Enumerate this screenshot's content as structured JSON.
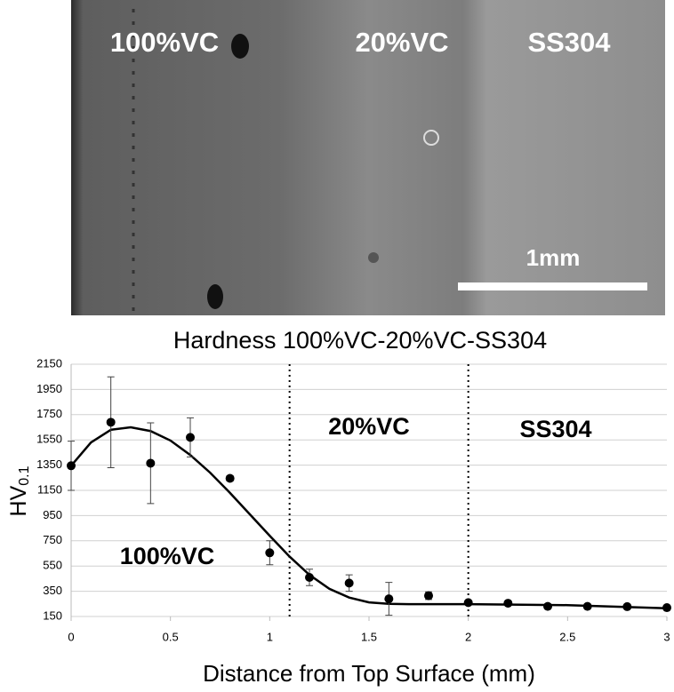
{
  "micrograph": {
    "labels": [
      "100%VC",
      "20%VC",
      "SS304"
    ],
    "scale_bar": "1mm"
  },
  "chart_data": {
    "type": "scatter",
    "title": "Hardness 100%VC-20%VC-SS304",
    "xlabel": "Distance from Top Surface (mm)",
    "ylabel": "HV",
    "ylabel_subscript": "0.1",
    "xlim": [
      0,
      3
    ],
    "xticks": [
      0,
      0.5,
      1,
      1.5,
      2,
      2.5,
      3
    ],
    "ylim": [
      150,
      2150
    ],
    "yticks": [
      150,
      350,
      550,
      750,
      950,
      1150,
      1350,
      1550,
      1750,
      1950,
      2150
    ],
    "grid": true,
    "series": [
      {
        "color": "#000000",
        "x": [
          0,
          0.2,
          0.4,
          0.6,
          0.8,
          1.0,
          1.2,
          1.4,
          1.6,
          1.8,
          2.0,
          2.2,
          2.4,
          2.6,
          2.8,
          3.0
        ],
        "values": [
          1345,
          1690,
          1365,
          1570,
          1245,
          655,
          460,
          415,
          290,
          315,
          260,
          255,
          230,
          230,
          228,
          220
        ],
        "errors": [
          195,
          360,
          320,
          155,
          20,
          95,
          65,
          65,
          130,
          30,
          10,
          10,
          10,
          10,
          10,
          10
        ]
      }
    ],
    "fit": {
      "color": "#000000",
      "x": [
        0,
        0.1,
        0.2,
        0.3,
        0.4,
        0.5,
        0.6,
        0.7,
        0.8,
        0.9,
        1.0,
        1.1,
        1.2,
        1.3,
        1.4,
        1.5,
        1.6,
        1.7,
        1.8,
        2.0,
        2.5,
        3.0
      ],
      "values": [
        1345,
        1530,
        1630,
        1650,
        1620,
        1545,
        1430,
        1290,
        1130,
        960,
        790,
        625,
        480,
        370,
        300,
        262,
        250,
        248,
        248,
        248,
        240,
        215
      ]
    },
    "vlines": [
      1.1,
      2.0
    ],
    "annotations": [
      "100%VC",
      "20%VC",
      "SS304"
    ]
  }
}
